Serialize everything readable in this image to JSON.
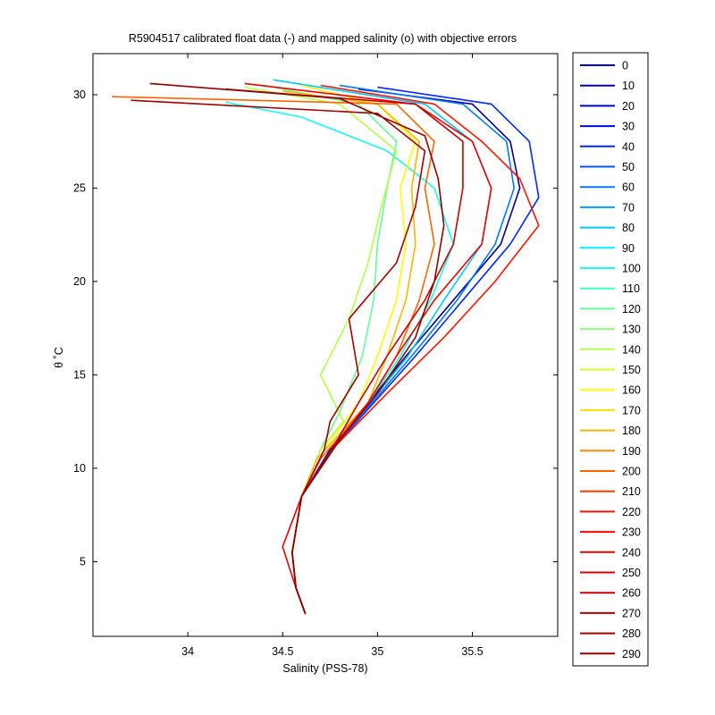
{
  "chart_data": {
    "type": "line",
    "title": "R5904517 calibrated float data (-) and mapped salinity (o) with objective errors",
    "xlabel": "Salinity (PSS-78)",
    "ylabel": "θ ˚C",
    "xlim": [
      33.5,
      35.95
    ],
    "ylim": [
      1,
      32.2
    ],
    "xticks": [
      34,
      34.5,
      35,
      35.5
    ],
    "yticks": [
      5,
      10,
      15,
      20,
      25,
      30
    ],
    "grid": false,
    "legend_position": "outside-right",
    "legend_entries": [
      "0",
      "10",
      "20",
      "30",
      "40",
      "50",
      "60",
      "70",
      "80",
      "90",
      "100",
      "110",
      "120",
      "130",
      "140",
      "150",
      "160",
      "170",
      "180",
      "190",
      "200",
      "210",
      "220",
      "230",
      "240",
      "250",
      "260",
      "270",
      "280",
      "290"
    ],
    "legend_colors": [
      "#00008f",
      "#0000b5",
      "#0000db",
      "#0005ff",
      "#0028ff",
      "#0050ff",
      "#0078ff",
      "#00a0ff",
      "#00c8ff",
      "#00f0ff",
      "#14ffeb",
      "#3cffc3",
      "#64ff9b",
      "#8cff73",
      "#b4ff4b",
      "#dcff23",
      "#ffff00",
      "#ffdb00",
      "#ffb400",
      "#ff8c00",
      "#ff6400",
      "#ff3c00",
      "#ff1400",
      "#ff0000",
      "#ed0000",
      "#db0000",
      "#c80000",
      "#b50000",
      "#a20000",
      "#8f0000"
    ],
    "series": [
      {
        "name": "0",
        "x": [
          34.62,
          34.57,
          34.55,
          34.6,
          34.75,
          34.95,
          35.15,
          35.4,
          35.65,
          35.75,
          35.7,
          35.5,
          34.9
        ],
        "y": [
          2.2,
          3.6,
          5.5,
          8.5,
          11.0,
          13.5,
          16.0,
          19.0,
          22.0,
          25.0,
          27.5,
          29.5,
          30.3
        ]
      },
      {
        "name": "40",
        "x": [
          34.62,
          34.57,
          34.55,
          34.6,
          34.76,
          34.98,
          35.2,
          35.45,
          35.7,
          35.85,
          35.8,
          35.6,
          35.0
        ],
        "y": [
          2.2,
          3.6,
          5.5,
          8.5,
          11.0,
          13.5,
          16.0,
          19.0,
          22.0,
          24.5,
          27.5,
          29.5,
          30.4
        ]
      },
      {
        "name": "60",
        "x": [
          34.62,
          34.57,
          34.55,
          34.6,
          34.76,
          34.97,
          35.18,
          35.42,
          35.62,
          35.72,
          35.68,
          35.45,
          34.8
        ],
        "y": [
          2.2,
          3.6,
          5.5,
          8.5,
          11.0,
          13.5,
          16.0,
          19.0,
          22.0,
          25.0,
          27.5,
          29.5,
          30.5
        ]
      },
      {
        "name": "80",
        "x": [
          34.62,
          34.57,
          34.55,
          34.6,
          34.76,
          34.96,
          35.16,
          35.35,
          35.55,
          35.6,
          35.5,
          35.25,
          34.45
        ],
        "y": [
          2.2,
          3.6,
          5.5,
          8.5,
          11.0,
          13.5,
          16.0,
          19.0,
          22.0,
          25.0,
          27.5,
          29.5,
          30.8
        ]
      },
      {
        "name": "100",
        "x": [
          34.62,
          34.57,
          34.55,
          34.6,
          34.76,
          34.95,
          35.12,
          35.28,
          35.4,
          35.3,
          35.05,
          34.6,
          34.2
        ],
        "y": [
          2.2,
          3.6,
          5.5,
          8.5,
          11.0,
          13.5,
          16.0,
          19.0,
          22.0,
          25.0,
          27.0,
          28.8,
          29.6
        ]
      },
      {
        "name": "120",
        "x": [
          34.62,
          34.57,
          34.55,
          34.6,
          34.7,
          34.8,
          34.92,
          34.98,
          35.0,
          35.05,
          35.1,
          34.9,
          34.4
        ],
        "y": [
          2.2,
          3.6,
          5.5,
          8.5,
          11.0,
          13.0,
          16.0,
          19.0,
          22.0,
          25.0,
          27.5,
          29.5,
          30.5
        ]
      },
      {
        "name": "140",
        "x": [
          34.62,
          34.57,
          34.55,
          34.6,
          34.7,
          34.82,
          34.7,
          34.85,
          34.95,
          35.02,
          35.1,
          34.8,
          34.3
        ],
        "y": [
          2.2,
          3.6,
          5.5,
          8.5,
          11.0,
          12.5,
          15.0,
          18.0,
          21.0,
          24.0,
          27.0,
          29.5,
          30.4
        ]
      },
      {
        "name": "160",
        "x": [
          34.62,
          34.57,
          34.55,
          34.6,
          34.72,
          34.9,
          35.0,
          35.1,
          35.15,
          35.12,
          35.2,
          35.0,
          34.6
        ],
        "y": [
          2.2,
          3.6,
          5.5,
          8.5,
          11.0,
          13.5,
          16.0,
          19.0,
          22.0,
          25.0,
          27.5,
          29.5,
          30.5
        ]
      },
      {
        "name": "180",
        "x": [
          34.62,
          34.57,
          34.55,
          34.6,
          34.68,
          34.95,
          35.05,
          35.15,
          35.2,
          35.18,
          35.22,
          35.0,
          34.5
        ],
        "y": [
          2.2,
          3.6,
          5.5,
          8.5,
          10.5,
          13.5,
          16.0,
          19.0,
          22.0,
          25.0,
          27.5,
          29.5,
          30.2
        ]
      },
      {
        "name": "200",
        "x": [
          34.62,
          34.57,
          34.55,
          34.6,
          34.7,
          34.95,
          35.1,
          35.22,
          35.3,
          35.25,
          35.3,
          35.1,
          33.6
        ],
        "y": [
          2.2,
          3.6,
          5.5,
          8.5,
          10.5,
          13.5,
          16.0,
          19.0,
          22.0,
          25.0,
          27.5,
          29.5,
          29.9
        ]
      },
      {
        "name": "220",
        "x": [
          34.62,
          34.57,
          34.55,
          34.6,
          34.76,
          35.05,
          35.35,
          35.62,
          35.85,
          35.75,
          35.55,
          35.3,
          34.7
        ],
        "y": [
          2.2,
          3.6,
          5.5,
          8.5,
          11.0,
          14.0,
          17.0,
          20.0,
          23.0,
          25.5,
          27.5,
          29.5,
          30.5
        ]
      },
      {
        "name": "240",
        "x": [
          34.62,
          34.57,
          34.5,
          34.6,
          34.76,
          34.95,
          35.1,
          35.3,
          35.55,
          35.6,
          35.5,
          35.2,
          34.3
        ],
        "y": [
          2.2,
          3.6,
          5.8,
          8.5,
          11.0,
          13.5,
          16.0,
          19.0,
          22.0,
          25.0,
          27.5,
          29.5,
          30.6
        ]
      },
      {
        "name": "260",
        "x": [
          34.62,
          34.57,
          34.55,
          34.6,
          34.76,
          34.9,
          35.05,
          35.25,
          35.4,
          35.45,
          35.45,
          35.2,
          34.2
        ],
        "y": [
          2.2,
          3.6,
          5.5,
          8.5,
          11.0,
          13.5,
          16.0,
          19.0,
          22.0,
          25.0,
          27.5,
          29.5,
          30.3
        ]
      },
      {
        "name": "280",
        "x": [
          34.62,
          34.57,
          34.55,
          34.6,
          34.72,
          34.75,
          34.9,
          34.85,
          35.1,
          35.2,
          35.25,
          35.0,
          33.7
        ],
        "y": [
          2.2,
          3.6,
          5.5,
          8.5,
          11.0,
          12.5,
          15.0,
          18.0,
          21.0,
          24.0,
          27.0,
          29.0,
          29.7
        ]
      },
      {
        "name": "290",
        "x": [
          34.62,
          34.57,
          34.55,
          34.6,
          34.8,
          35.0,
          35.2,
          35.3,
          35.35,
          35.32,
          35.25,
          34.8,
          33.8
        ],
        "y": [
          2.2,
          3.6,
          5.5,
          8.5,
          11.5,
          14.0,
          17.0,
          20.0,
          23.0,
          25.5,
          27.8,
          29.8,
          30.6
        ]
      }
    ]
  }
}
